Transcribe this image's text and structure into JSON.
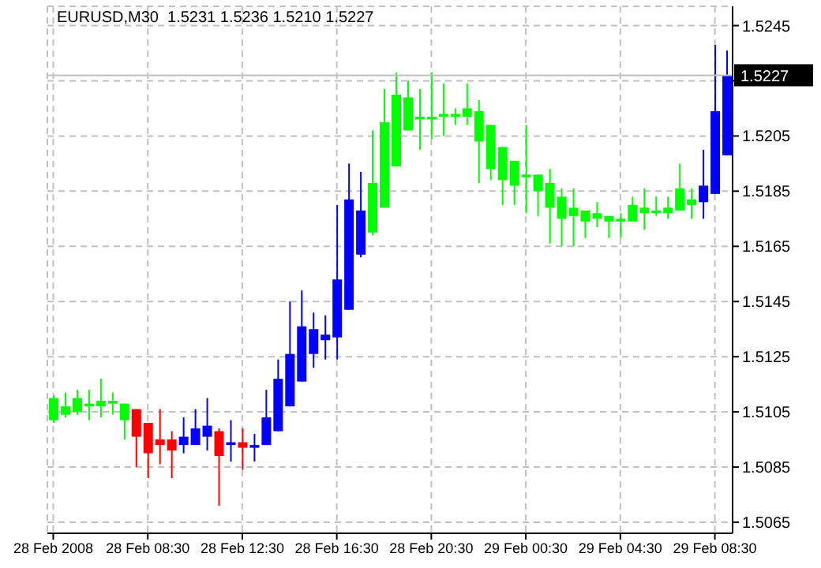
{
  "chart_data": {
    "type": "candlestick",
    "title": "EURUSD,M30  1.5231 1.5236 1.5210 1.5227",
    "categories": [
      "28 Feb 2008",
      null,
      null,
      null,
      null,
      null,
      null,
      null,
      "28 Feb 08:30",
      null,
      null,
      null,
      null,
      null,
      null,
      null,
      "28 Feb 12:30",
      null,
      null,
      null,
      null,
      null,
      null,
      null,
      "28 Feb 16:30",
      null,
      null,
      null,
      null,
      null,
      null,
      null,
      "28 Feb 20:30",
      null,
      null,
      null,
      null,
      null,
      null,
      null,
      "29 Feb 00:30",
      null,
      null,
      null,
      null,
      null,
      null,
      null,
      "29 Feb 04:30",
      null,
      null,
      null,
      null,
      null,
      null,
      null,
      "29 Feb 08:30",
      null
    ],
    "ohlc": [
      [
        1.5102,
        1.5111,
        1.5101,
        1.511
      ],
      [
        1.5104,
        1.5112,
        1.5103,
        1.5107
      ],
      [
        1.5105,
        1.5113,
        1.5104,
        1.511
      ],
      [
        1.5107,
        1.5113,
        1.5102,
        1.5108
      ],
      [
        1.5107,
        1.5117,
        1.5103,
        1.5109
      ],
      [
        1.5108,
        1.5112,
        1.5104,
        1.5109
      ],
      [
        1.5102,
        1.5108,
        1.5095,
        1.5108
      ],
      [
        1.5106,
        1.5106,
        1.5085,
        1.5096
      ],
      [
        1.5101,
        1.5101,
        1.5081,
        1.509
      ],
      [
        1.5095,
        1.5106,
        1.5086,
        1.5093
      ],
      [
        1.5095,
        1.5098,
        1.5081,
        1.5091
      ],
      [
        1.5093,
        1.5103,
        1.509,
        1.5096
      ],
      [
        1.5093,
        1.5106,
        1.5093,
        1.5099
      ],
      [
        1.5096,
        1.511,
        1.5091,
        1.51
      ],
      [
        1.5098,
        1.5099,
        1.5071,
        1.5089
      ],
      [
        1.5093,
        1.5102,
        1.5087,
        1.5094
      ],
      [
        1.5094,
        1.5099,
        1.5084,
        1.5092
      ],
      [
        1.5092,
        1.5097,
        1.5087,
        1.5093
      ],
      [
        1.5093,
        1.5113,
        1.5093,
        1.5103
      ],
      [
        1.5098,
        1.5124,
        1.5098,
        1.5117
      ],
      [
        1.5107,
        1.5145,
        1.5107,
        1.5126
      ],
      [
        1.5116,
        1.5149,
        1.5116,
        1.5136
      ],
      [
        1.5126,
        1.5141,
        1.5121,
        1.5135
      ],
      [
        1.5131,
        1.514,
        1.5124,
        1.5133
      ],
      [
        1.5132,
        1.518,
        1.5124,
        1.5153
      ],
      [
        1.5142,
        1.5195,
        1.5142,
        1.5182
      ],
      [
        1.5162,
        1.5192,
        1.5161,
        1.5178
      ],
      [
        1.517,
        1.5207,
        1.5169,
        1.5188
      ],
      [
        1.5179,
        1.5222,
        1.5179,
        1.521
      ],
      [
        1.5194,
        1.5228,
        1.5194,
        1.522
      ],
      [
        1.5207,
        1.5225,
        1.5207,
        1.5219
      ],
      [
        1.5211,
        1.5222,
        1.52,
        1.5212
      ],
      [
        1.5211,
        1.5228,
        1.5204,
        1.5212
      ],
      [
        1.5212,
        1.5224,
        1.5205,
        1.5213
      ],
      [
        1.5212,
        1.5215,
        1.5209,
        1.5213
      ],
      [
        1.5212,
        1.5224,
        1.5209,
        1.5215
      ],
      [
        1.5203,
        1.5218,
        1.5188,
        1.5214
      ],
      [
        1.5193,
        1.5209,
        1.5189,
        1.5209
      ],
      [
        1.5189,
        1.5201,
        1.518,
        1.5201
      ],
      [
        1.5187,
        1.5196,
        1.518,
        1.5196
      ],
      [
        1.519,
        1.5209,
        1.5177,
        1.5191
      ],
      [
        1.5185,
        1.5191,
        1.5176,
        1.5191
      ],
      [
        1.5179,
        1.5193,
        1.5166,
        1.5188
      ],
      [
        1.5175,
        1.5186,
        1.5165,
        1.5183
      ],
      [
        1.5176,
        1.5186,
        1.5165,
        1.5179
      ],
      [
        1.5174,
        1.5178,
        1.5168,
        1.5178
      ],
      [
        1.5175,
        1.5181,
        1.5172,
        1.5177
      ],
      [
        1.5174,
        1.5176,
        1.5168,
        1.5176
      ],
      [
        1.5174,
        1.5177,
        1.5168,
        1.5175
      ],
      [
        1.5174,
        1.5183,
        1.5174,
        1.518
      ],
      [
        1.5177,
        1.5186,
        1.5171,
        1.5179
      ],
      [
        1.5177,
        1.5183,
        1.5176,
        1.5178
      ],
      [
        1.5177,
        1.5183,
        1.5175,
        1.5179
      ],
      [
        1.5178,
        1.5195,
        1.5178,
        1.5186
      ],
      [
        1.518,
        1.5186,
        1.5175,
        1.5182
      ],
      [
        1.5181,
        1.52,
        1.5175,
        1.5187
      ],
      [
        1.5184,
        1.5238,
        1.5184,
        1.5214
      ],
      [
        1.5198,
        1.5236,
        1.5198,
        1.5227
      ]
    ],
    "colors": [
      "#00ff00",
      "#00ff00",
      "#00ff00",
      "#00ff00",
      "#00ff00",
      "#00ff00",
      "#00ff00",
      "#ff0000",
      "#ff0000",
      "#ff0000",
      "#ff0000",
      "#0000ff",
      "#0000ff",
      "#0000ff",
      "#ff0000",
      "#0000ff",
      "#ff0000",
      "#0000ff",
      "#0000ff",
      "#0000ff",
      "#0000ff",
      "#0000ff",
      "#0000ff",
      "#0000ff",
      "#0000ff",
      "#0000ff",
      "#0000ff",
      "#00ff00",
      "#00ff00",
      "#00ff00",
      "#00ff00",
      "#00ff00",
      "#00ff00",
      "#00ff00",
      "#00ff00",
      "#00ff00",
      "#00ff00",
      "#00ff00",
      "#00ff00",
      "#00ff00",
      "#00ff00",
      "#00ff00",
      "#00ff00",
      "#00ff00",
      "#00ff00",
      "#00ff00",
      "#00ff00",
      "#00ff00",
      "#00ff00",
      "#00ff00",
      "#00ff00",
      "#00ff00",
      "#00ff00",
      "#00ff00",
      "#00ff00",
      "#0000ff",
      "#0000ff",
      "#0000ff"
    ],
    "ylim": [
      1.5061,
      1.5252
    ],
    "yticks": [
      1.5065,
      1.5085,
      1.5105,
      1.5125,
      1.5145,
      1.5165,
      1.5185,
      1.5205,
      {
        "value": 1.5225,
        "label": null
      },
      1.5245
    ],
    "ref_lines": [
      {
        "axis": "y",
        "value": 1.5227,
        "label": "1.5227",
        "color": "#c0c0c0"
      }
    ],
    "grid": true
  }
}
